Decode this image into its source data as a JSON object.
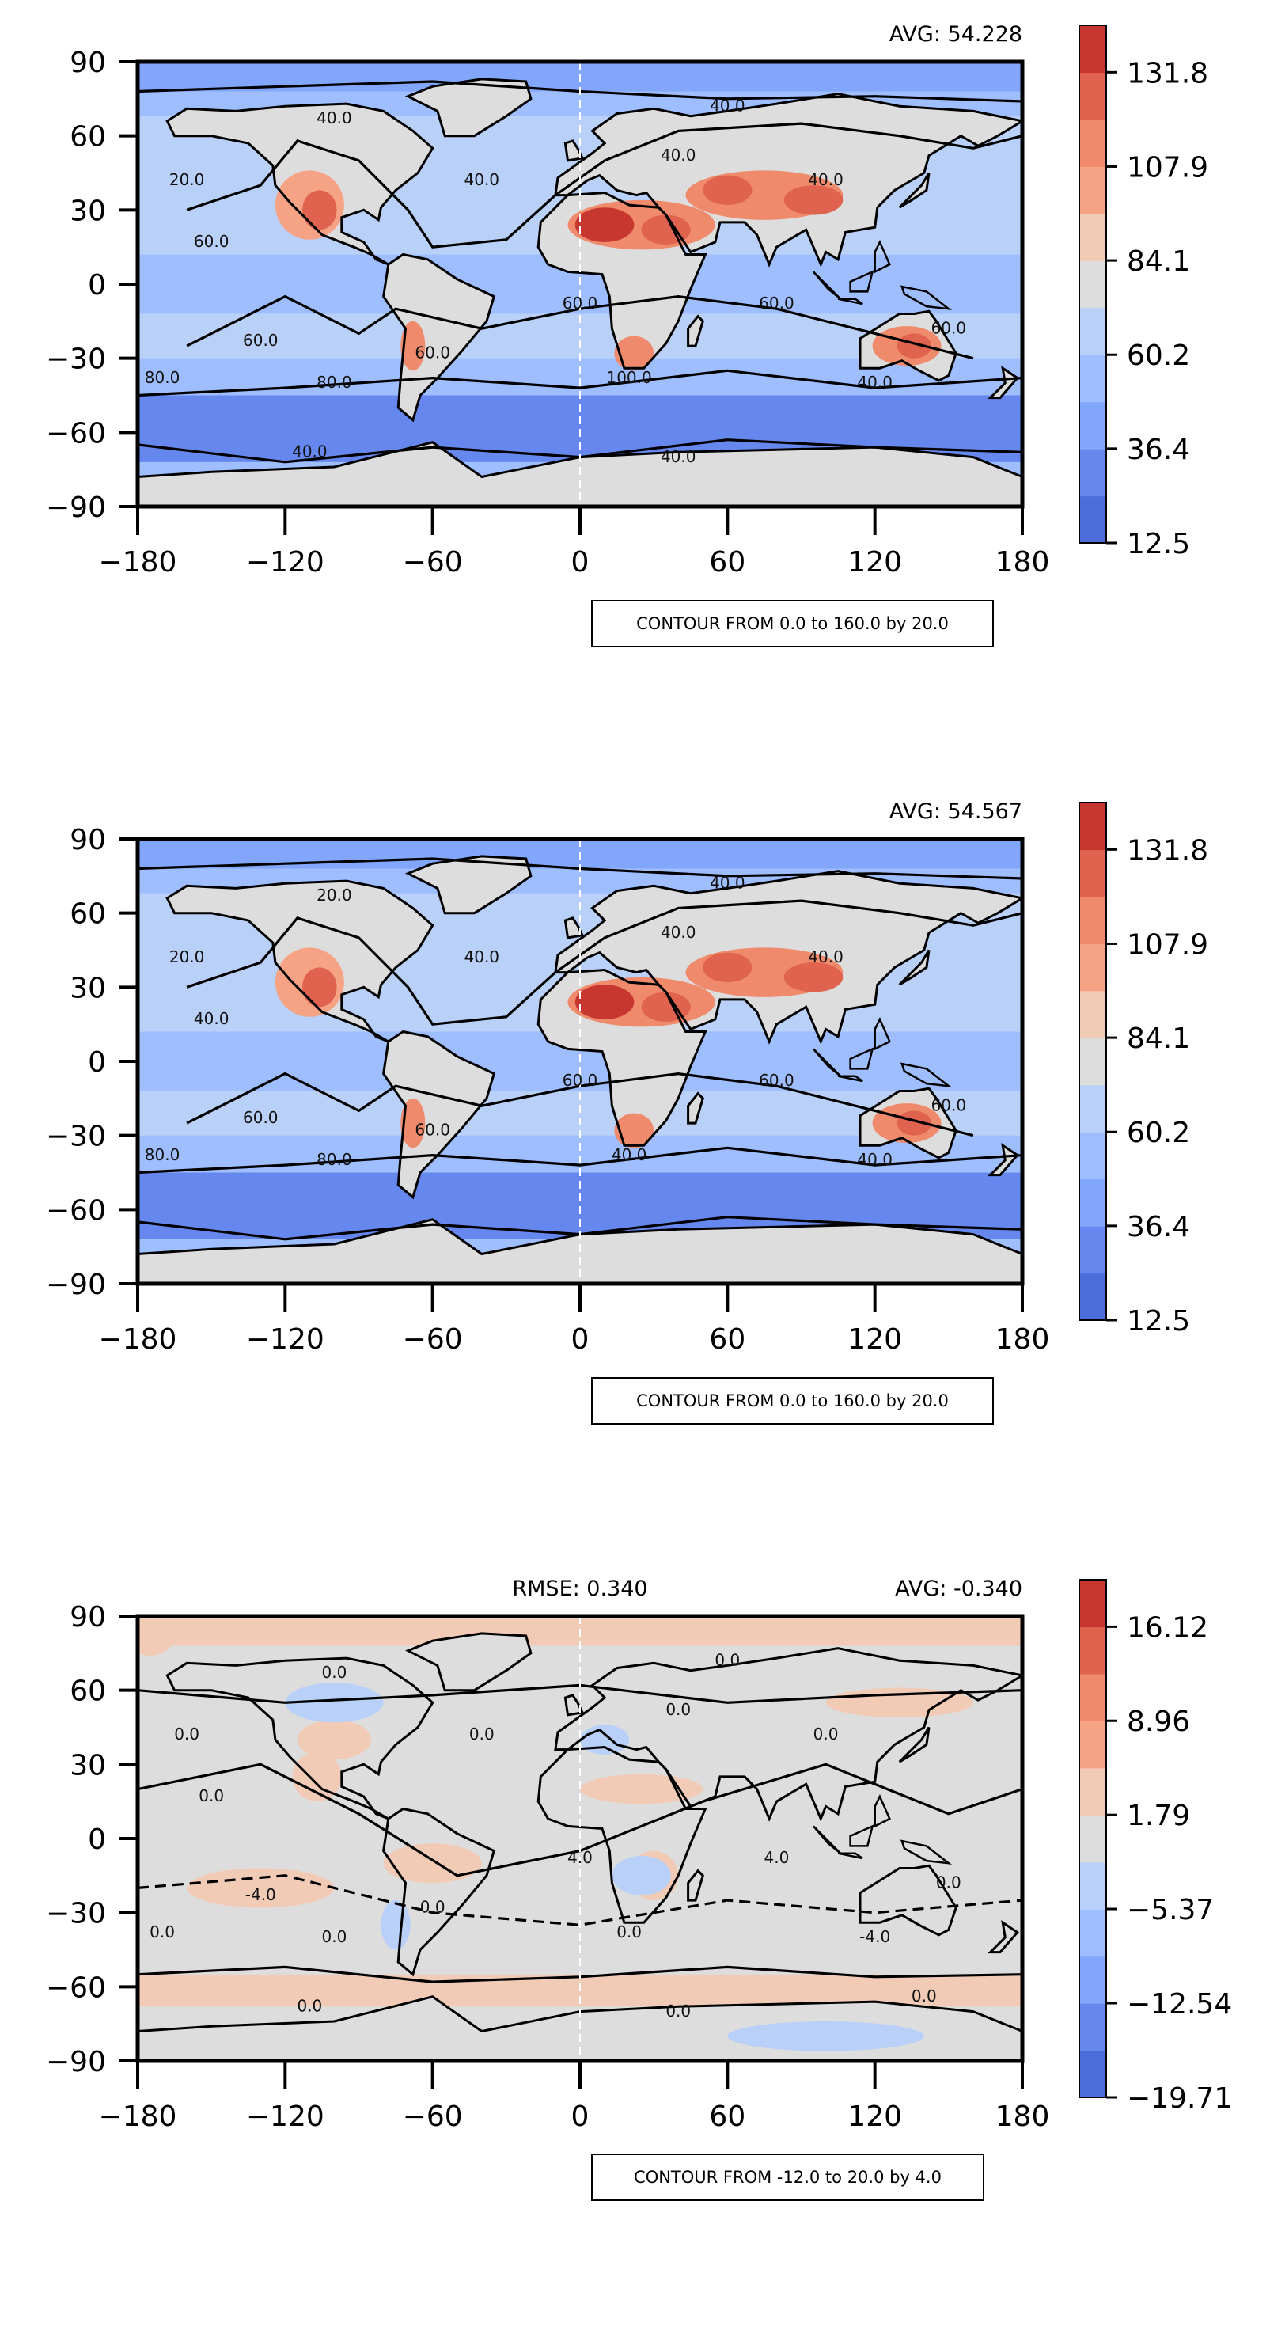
{
  "chart_data": [
    {
      "type": "heatmap",
      "subtype": "global lat-lon filled contour map",
      "avg_label": "AVG: 54.228",
      "rmse_label": "",
      "contour_note": "CONTOUR FROM 0.0 to 160.0 by 20.0",
      "xlim": [
        -180,
        180
      ],
      "ylim": [
        -90,
        90
      ],
      "xticks": [
        "−180",
        "−120",
        "−60",
        "0",
        "60",
        "120",
        "180"
      ],
      "yticks": [
        "90",
        "60",
        "30",
        "0",
        "−30",
        "−60",
        "−90"
      ],
      "colorbar": {
        "range": [
          12.5,
          143.7
        ],
        "tick_labels": [
          "131.8",
          "107.9",
          "84.1",
          "60.2",
          "36.4",
          "12.5"
        ],
        "colors": [
          "#4c6edb",
          "#6688ee",
          "#82a6fb",
          "#9ebeff",
          "#b9d0f9",
          "#dddddd",
          "#f2cbb7",
          "#f6a385",
          "#ef8a6c",
          "#df634e",
          "#c8372f"
        ]
      },
      "contour_labels": [
        "20.0",
        "40.0",
        "40.0",
        "40.0",
        "60.0",
        "60.0",
        "60.0",
        "60.0",
        "60.0",
        "60.0",
        "80.0",
        "80.0",
        "100.0",
        "40.0",
        "40.0",
        "40.0",
        "40.0",
        "40.0"
      ]
    },
    {
      "type": "heatmap",
      "subtype": "global lat-lon filled contour map",
      "avg_label": "AVG: 54.567",
      "rmse_label": "",
      "contour_note": "CONTOUR FROM 0.0 to 160.0 by 20.0",
      "xlim": [
        -180,
        180
      ],
      "ylim": [
        -90,
        90
      ],
      "xticks": [
        "−180",
        "−120",
        "−60",
        "0",
        "60",
        "120",
        "180"
      ],
      "yticks": [
        "90",
        "60",
        "30",
        "0",
        "−30",
        "−60",
        "−90"
      ],
      "colorbar": {
        "range": [
          12.5,
          143.7
        ],
        "tick_labels": [
          "131.8",
          "107.9",
          "84.1",
          "60.2",
          "36.4",
          "12.5"
        ],
        "colors": [
          "#4c6edb",
          "#6688ee",
          "#82a6fb",
          "#9ebeff",
          "#b9d0f9",
          "#dddddd",
          "#f2cbb7",
          "#f6a385",
          "#ef8a6c",
          "#df634e",
          "#c8372f"
        ]
      },
      "contour_labels": [
        "20.0",
        "20.0",
        "40.0",
        "40.0",
        "40.0",
        "60.0",
        "60.0",
        "60.0",
        "60.0",
        "60.0",
        "80.0",
        "80.0",
        "40.0",
        "40.0",
        "40.0",
        "40.0"
      ]
    },
    {
      "type": "heatmap",
      "subtype": "global lat-lon filled contour map (difference)",
      "avg_label": "AVG: -0.340",
      "rmse_label": "RMSE: 0.340",
      "contour_note": "CONTOUR FROM -12.0 to 20.0 by 4.0",
      "xlim": [
        -180,
        180
      ],
      "ylim": [
        -90,
        90
      ],
      "xticks": [
        "−180",
        "−120",
        "−60",
        "0",
        "60",
        "120",
        "180"
      ],
      "yticks": [
        "90",
        "60",
        "30",
        "0",
        "−30",
        "−60",
        "−90"
      ],
      "colorbar": {
        "range": [
          -19.71,
          19.7
        ],
        "tick_labels": [
          "16.12",
          "8.96",
          "1.79",
          "−5.37",
          "−12.54",
          "−19.71"
        ],
        "colors": [
          "#4c6edb",
          "#6688ee",
          "#82a6fb",
          "#9ebeff",
          "#b9d0f9",
          "#dddddd",
          "#f2cbb7",
          "#f6a385",
          "#ef8a6c",
          "#df634e",
          "#c8372f"
        ]
      },
      "contour_labels": [
        "0.0",
        "0.0",
        "0.0",
        "0.0",
        "0.0",
        "-4.0",
        "0.0",
        "4.0",
        "4.0",
        "0.0",
        "0.0",
        "0.0",
        "0.0",
        "-4.0",
        "0.0",
        "0.0",
        "0.0",
        "0.0",
        "0.0"
      ]
    }
  ]
}
